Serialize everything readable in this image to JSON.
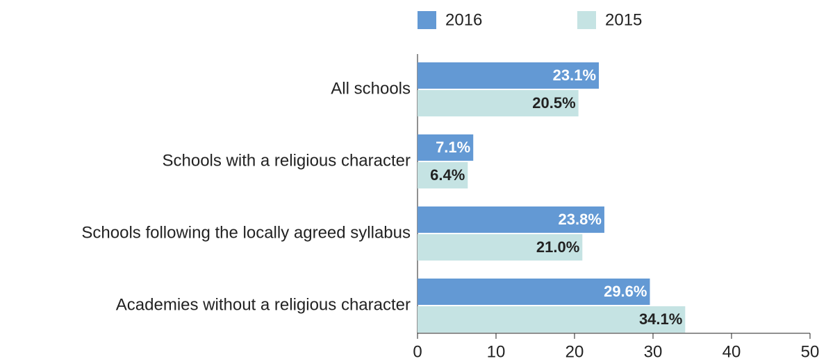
{
  "chart_data": {
    "type": "bar",
    "orientation": "horizontal",
    "categories": [
      "All schools",
      "Schools with a religious character",
      "Schools following the locally agreed syllabus",
      "Academies without a religious character"
    ],
    "series": [
      {
        "name": "2016",
        "color": "#6399d4",
        "values": [
          23.1,
          7.1,
          23.8,
          29.6
        ],
        "value_labels": [
          "23.1%",
          "7.1%",
          "23.8%",
          "29.6%"
        ]
      },
      {
        "name": "2015",
        "color": "#c5e3e3",
        "values": [
          20.5,
          6.4,
          21.0,
          34.1
        ],
        "value_labels": [
          "20.5%",
          "6.4%",
          "21.0%",
          "34.1%"
        ]
      }
    ],
    "xlim": [
      0,
      50
    ],
    "xticks": [
      0,
      10,
      20,
      30,
      40,
      50
    ],
    "legend": "top"
  }
}
